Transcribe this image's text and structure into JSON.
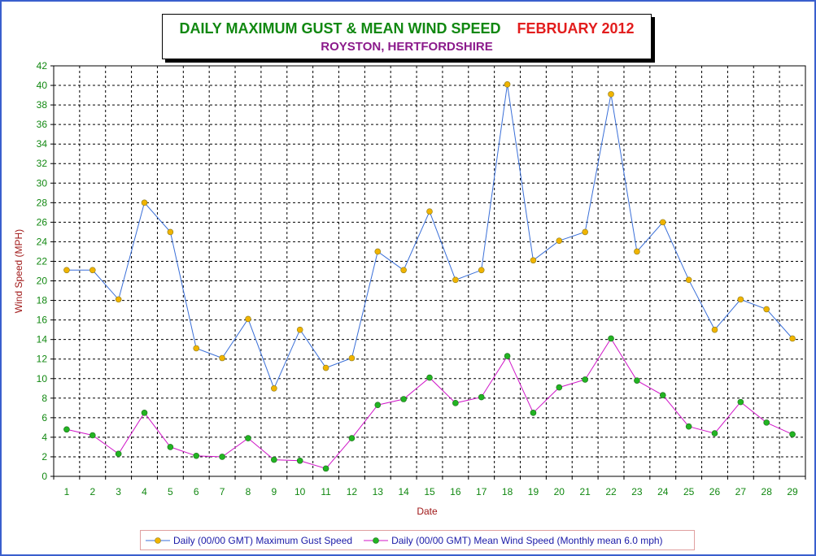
{
  "title": {
    "main": "DAILY MAXIMUM GUST & MEAN WIND SPEED",
    "period": "FEBRUARY 2012",
    "location": "ROYSTON, HERTFORDSHIRE"
  },
  "colors": {
    "title": "#118811",
    "period": "#e21d1d",
    "location": "#8b1a8b",
    "axis_label": "#a01818",
    "tick_label": "#118811",
    "gust_line": "#3a6fd8",
    "gust_marker": "#f0b400",
    "mean_line": "#d016c8",
    "mean_marker": "#22b422",
    "legend_text": "#1a1aa8"
  },
  "chart_data": {
    "type": "line",
    "xlabel": "Date",
    "ylabel": "Wind Speed (MPH)",
    "ylim": [
      0,
      42
    ],
    "ytick_step": 2,
    "grid": true,
    "legend_position": "bottom",
    "x": [
      1,
      2,
      3,
      4,
      5,
      6,
      7,
      8,
      9,
      10,
      11,
      12,
      13,
      14,
      15,
      16,
      17,
      18,
      19,
      20,
      21,
      22,
      23,
      24,
      25,
      26,
      27,
      28,
      29
    ],
    "series": [
      {
        "name": "Daily (00/00 GMT) Maximum Gust Speed",
        "values": [
          21.1,
          21.1,
          18.1,
          28.0,
          25.0,
          13.1,
          12.1,
          16.1,
          9.0,
          15.0,
          11.1,
          12.1,
          23.0,
          21.1,
          27.1,
          20.1,
          21.1,
          40.1,
          22.1,
          24.1,
          25.0,
          39.1,
          23.0,
          26.0,
          20.1,
          15.0,
          18.1,
          17.1,
          14.1
        ]
      },
      {
        "name": "Daily (00/00 GMT) Mean Wind Speed (Monthly mean 6.0 mph)",
        "values": [
          4.8,
          4.2,
          2.3,
          6.5,
          3.0,
          2.1,
          2.0,
          3.9,
          1.7,
          1.6,
          0.8,
          3.9,
          7.3,
          7.9,
          10.1,
          7.5,
          8.1,
          12.3,
          6.5,
          9.1,
          9.9,
          14.1,
          9.8,
          8.3,
          5.1,
          4.4,
          7.6,
          5.5,
          4.3
        ]
      }
    ]
  }
}
